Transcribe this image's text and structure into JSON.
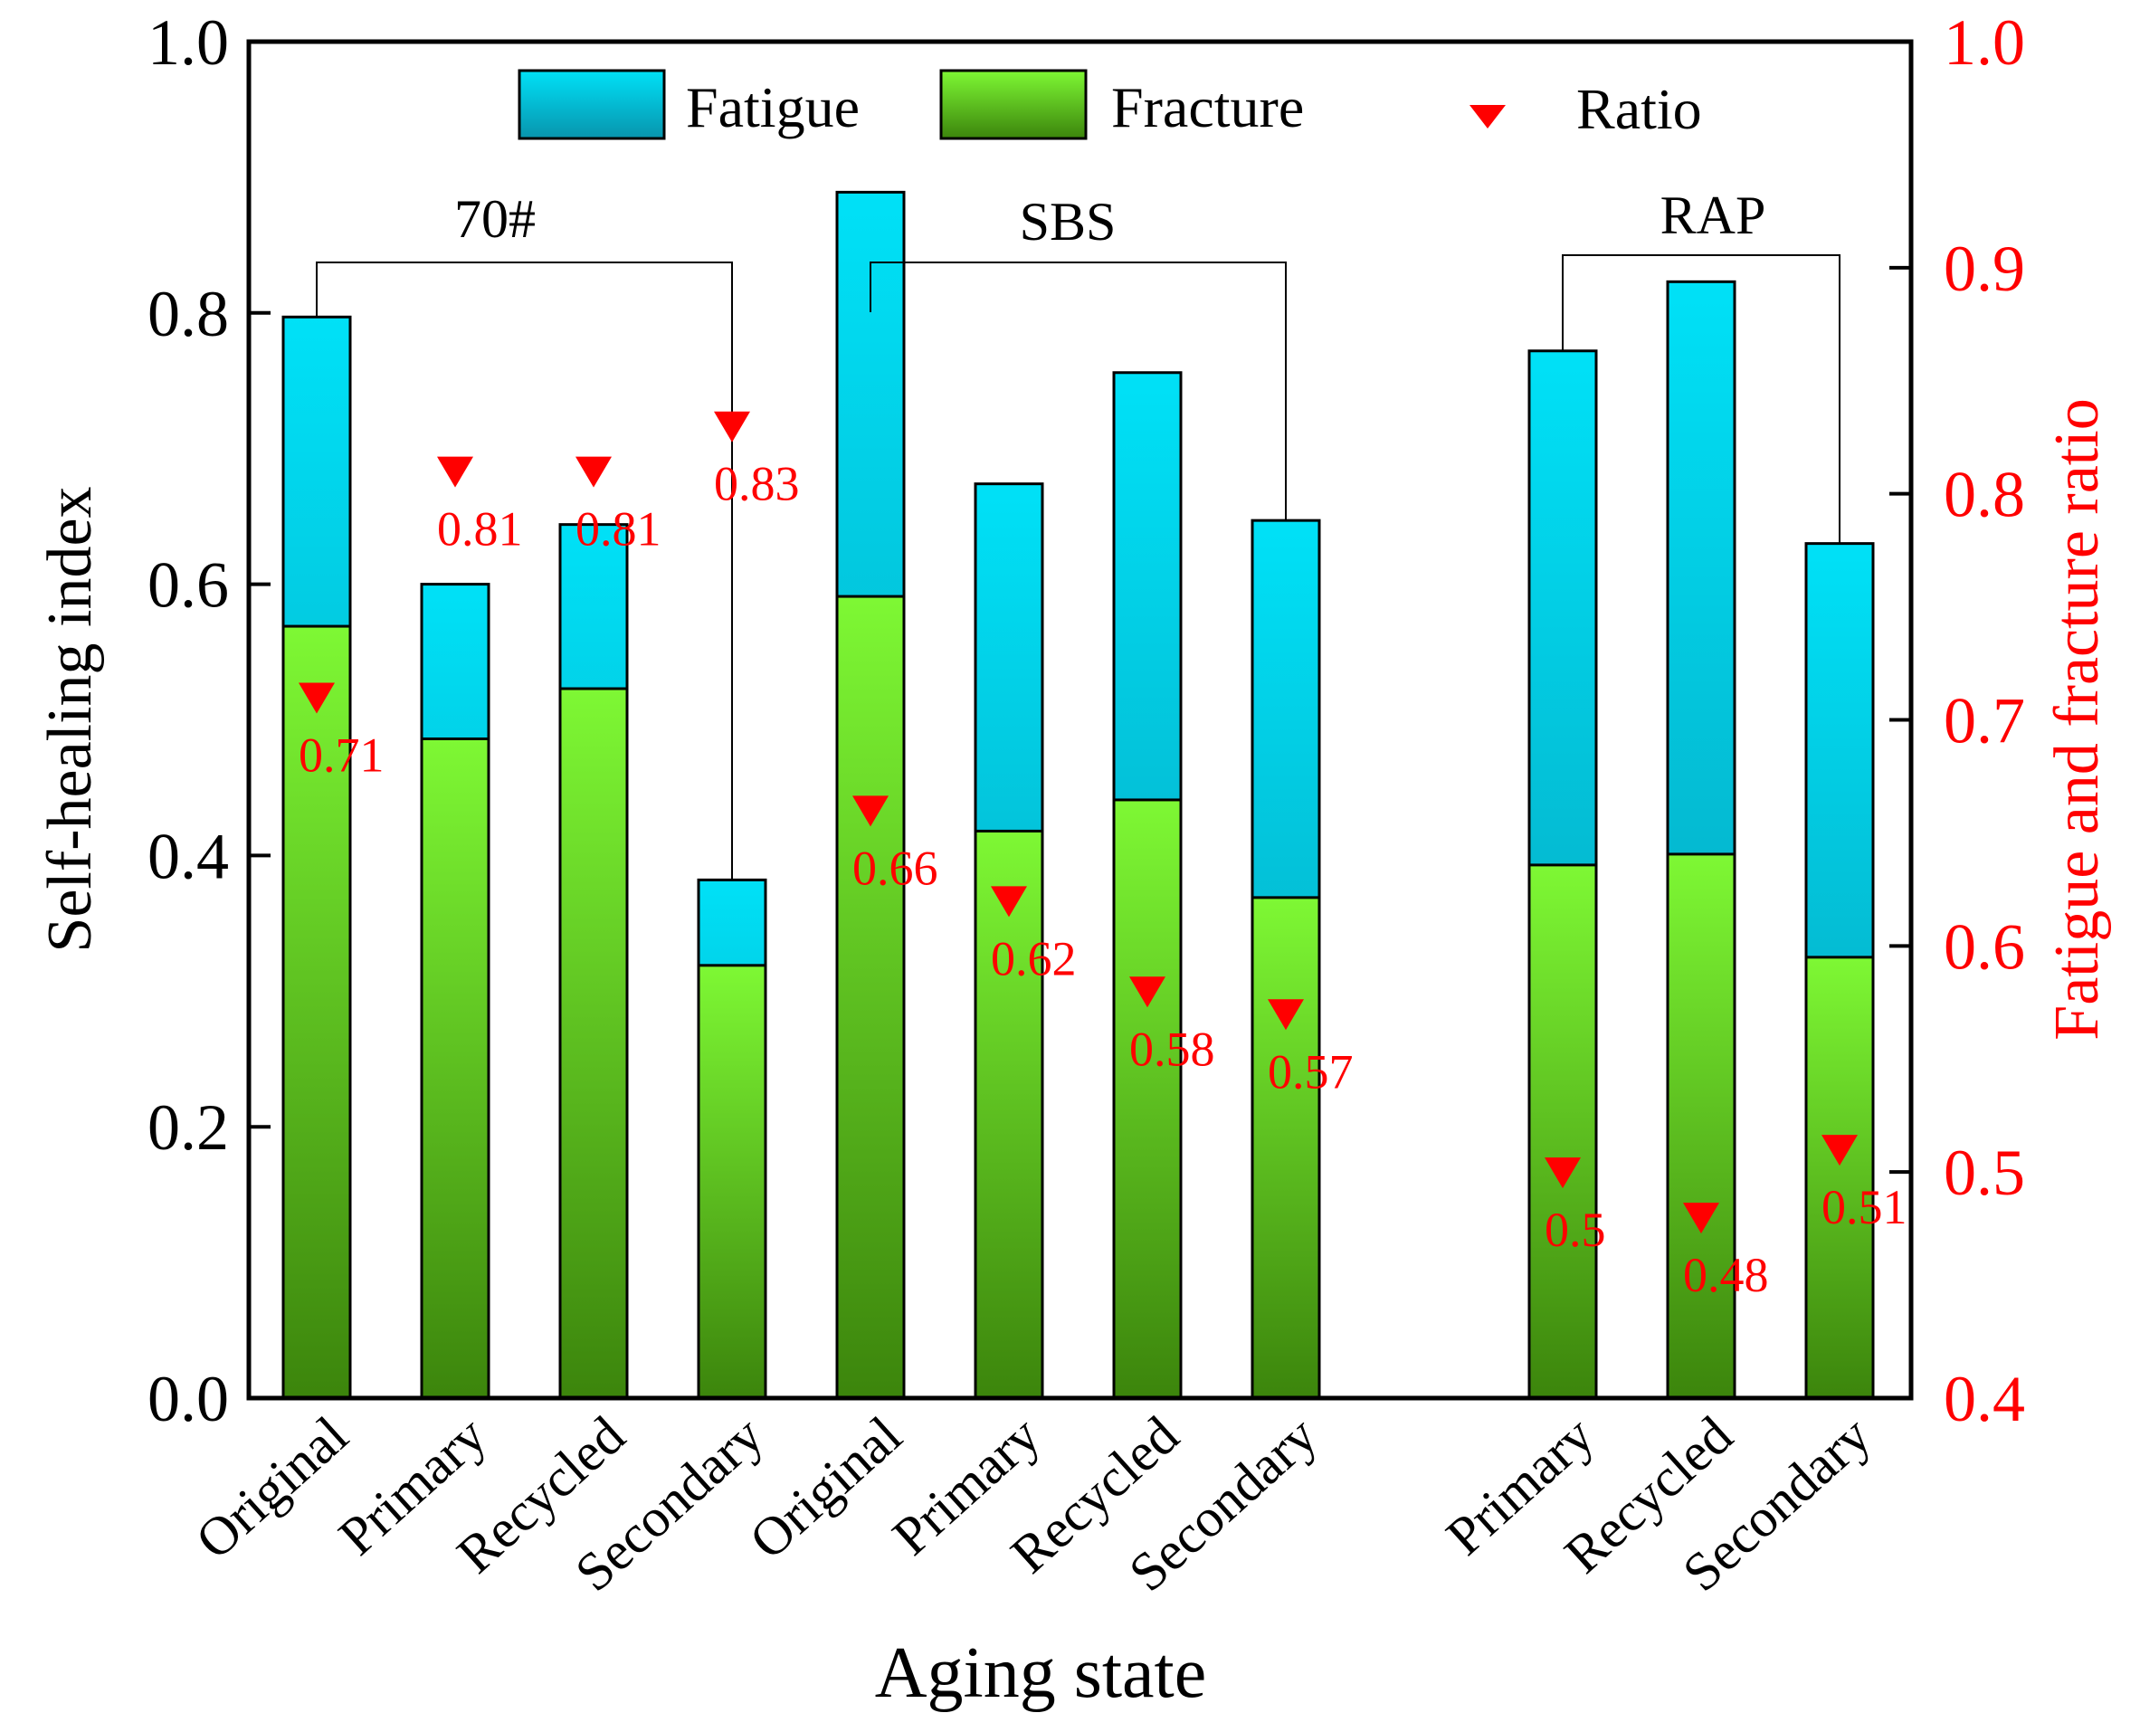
{
  "chart_data": {
    "type": "bar",
    "xlabel": "Aging state",
    "ylabel": "Self-healing index",
    "ylabel_right": "Fatigue and fracture  ratio",
    "ylim": [
      0,
      1.0
    ],
    "ylim_right": [
      0.4,
      1.0
    ],
    "yticks": [
      "0.0",
      "0.2",
      "0.4",
      "0.6",
      "0.8",
      "1.0"
    ],
    "yticks_right": [
      "0.4",
      "0.5",
      "0.6",
      "0.7",
      "0.8",
      "0.9",
      "1.0"
    ],
    "legend": {
      "placement": "top",
      "fatigue": "Fatigue",
      "fracture": "Fracture",
      "ratio": "Ratio"
    },
    "groups": [
      {
        "name": "70#",
        "first": 0,
        "last": 3
      },
      {
        "name": "SBS",
        "first": 4,
        "last": 7
      },
      {
        "name": "RAP",
        "first": 8,
        "last": 10
      }
    ],
    "categories": [
      "Original",
      "Primary",
      "Recycled",
      "Secondary",
      "Original",
      "Primary",
      "Recycled",
      "Secondary",
      "Primary",
      "Recycled",
      "Secondary"
    ],
    "slots": [
      0,
      1,
      2,
      3,
      4,
      5,
      6,
      7,
      9,
      10,
      11
    ],
    "series": [
      {
        "name": "Fatigue",
        "axis": "left",
        "values": [
          0.797,
          0.6,
          0.644,
          0.382,
          0.889,
          0.674,
          0.756,
          0.647,
          0.772,
          0.823,
          0.63
        ]
      },
      {
        "name": "Fracture",
        "axis": "left",
        "values": [
          0.569,
          0.486,
          0.523,
          0.319,
          0.591,
          0.418,
          0.441,
          0.369,
          0.393,
          0.401,
          0.325
        ]
      },
      {
        "name": "Ratio",
        "axis": "right",
        "values": [
          0.71,
          0.81,
          0.81,
          0.83,
          0.66,
          0.62,
          0.58,
          0.57,
          0.5,
          0.48,
          0.51
        ]
      }
    ],
    "ratio_labels": [
      "0.71",
      "0.81",
      "0.81",
      "0.83",
      "0.66",
      "0.62",
      "0.58",
      "0.57",
      "0.5",
      "0.48",
      "0.51"
    ],
    "colors": {
      "fatigue_top": "#00e1f7",
      "fatigue_bottom": "#0894ad",
      "fracture_top": "#7ef834",
      "fracture_bottom": "#3c850c",
      "ratio": "#ff0000",
      "axis": "#000000"
    }
  }
}
